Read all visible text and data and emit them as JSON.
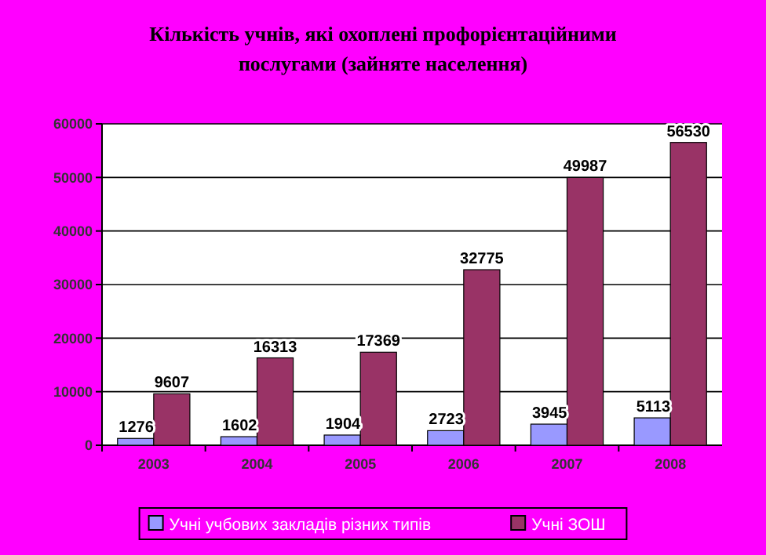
{
  "chart_data": {
    "type": "bar",
    "title": "Кількість учнів, які охоплені профорієнтаційними послугами (зайняте населення)",
    "categories": [
      "2003",
      "2004",
      "2005",
      "2006",
      "2007",
      "2008"
    ],
    "series": [
      {
        "name": "Учні учбових закладів різних типів",
        "color": "#9999ff",
        "values": [
          1276,
          1602,
          1904,
          2723,
          3945,
          5113
        ]
      },
      {
        "name": "Учні ЗОШ",
        "color": "#993366",
        "values": [
          9607,
          16313,
          17369,
          32775,
          49987,
          56530
        ]
      }
    ],
    "ylim": [
      0,
      60000
    ],
    "yticks": [
      0,
      10000,
      20000,
      30000,
      40000,
      50000,
      60000
    ],
    "grid": "y",
    "data_labels": true,
    "legend": "bottom"
  }
}
